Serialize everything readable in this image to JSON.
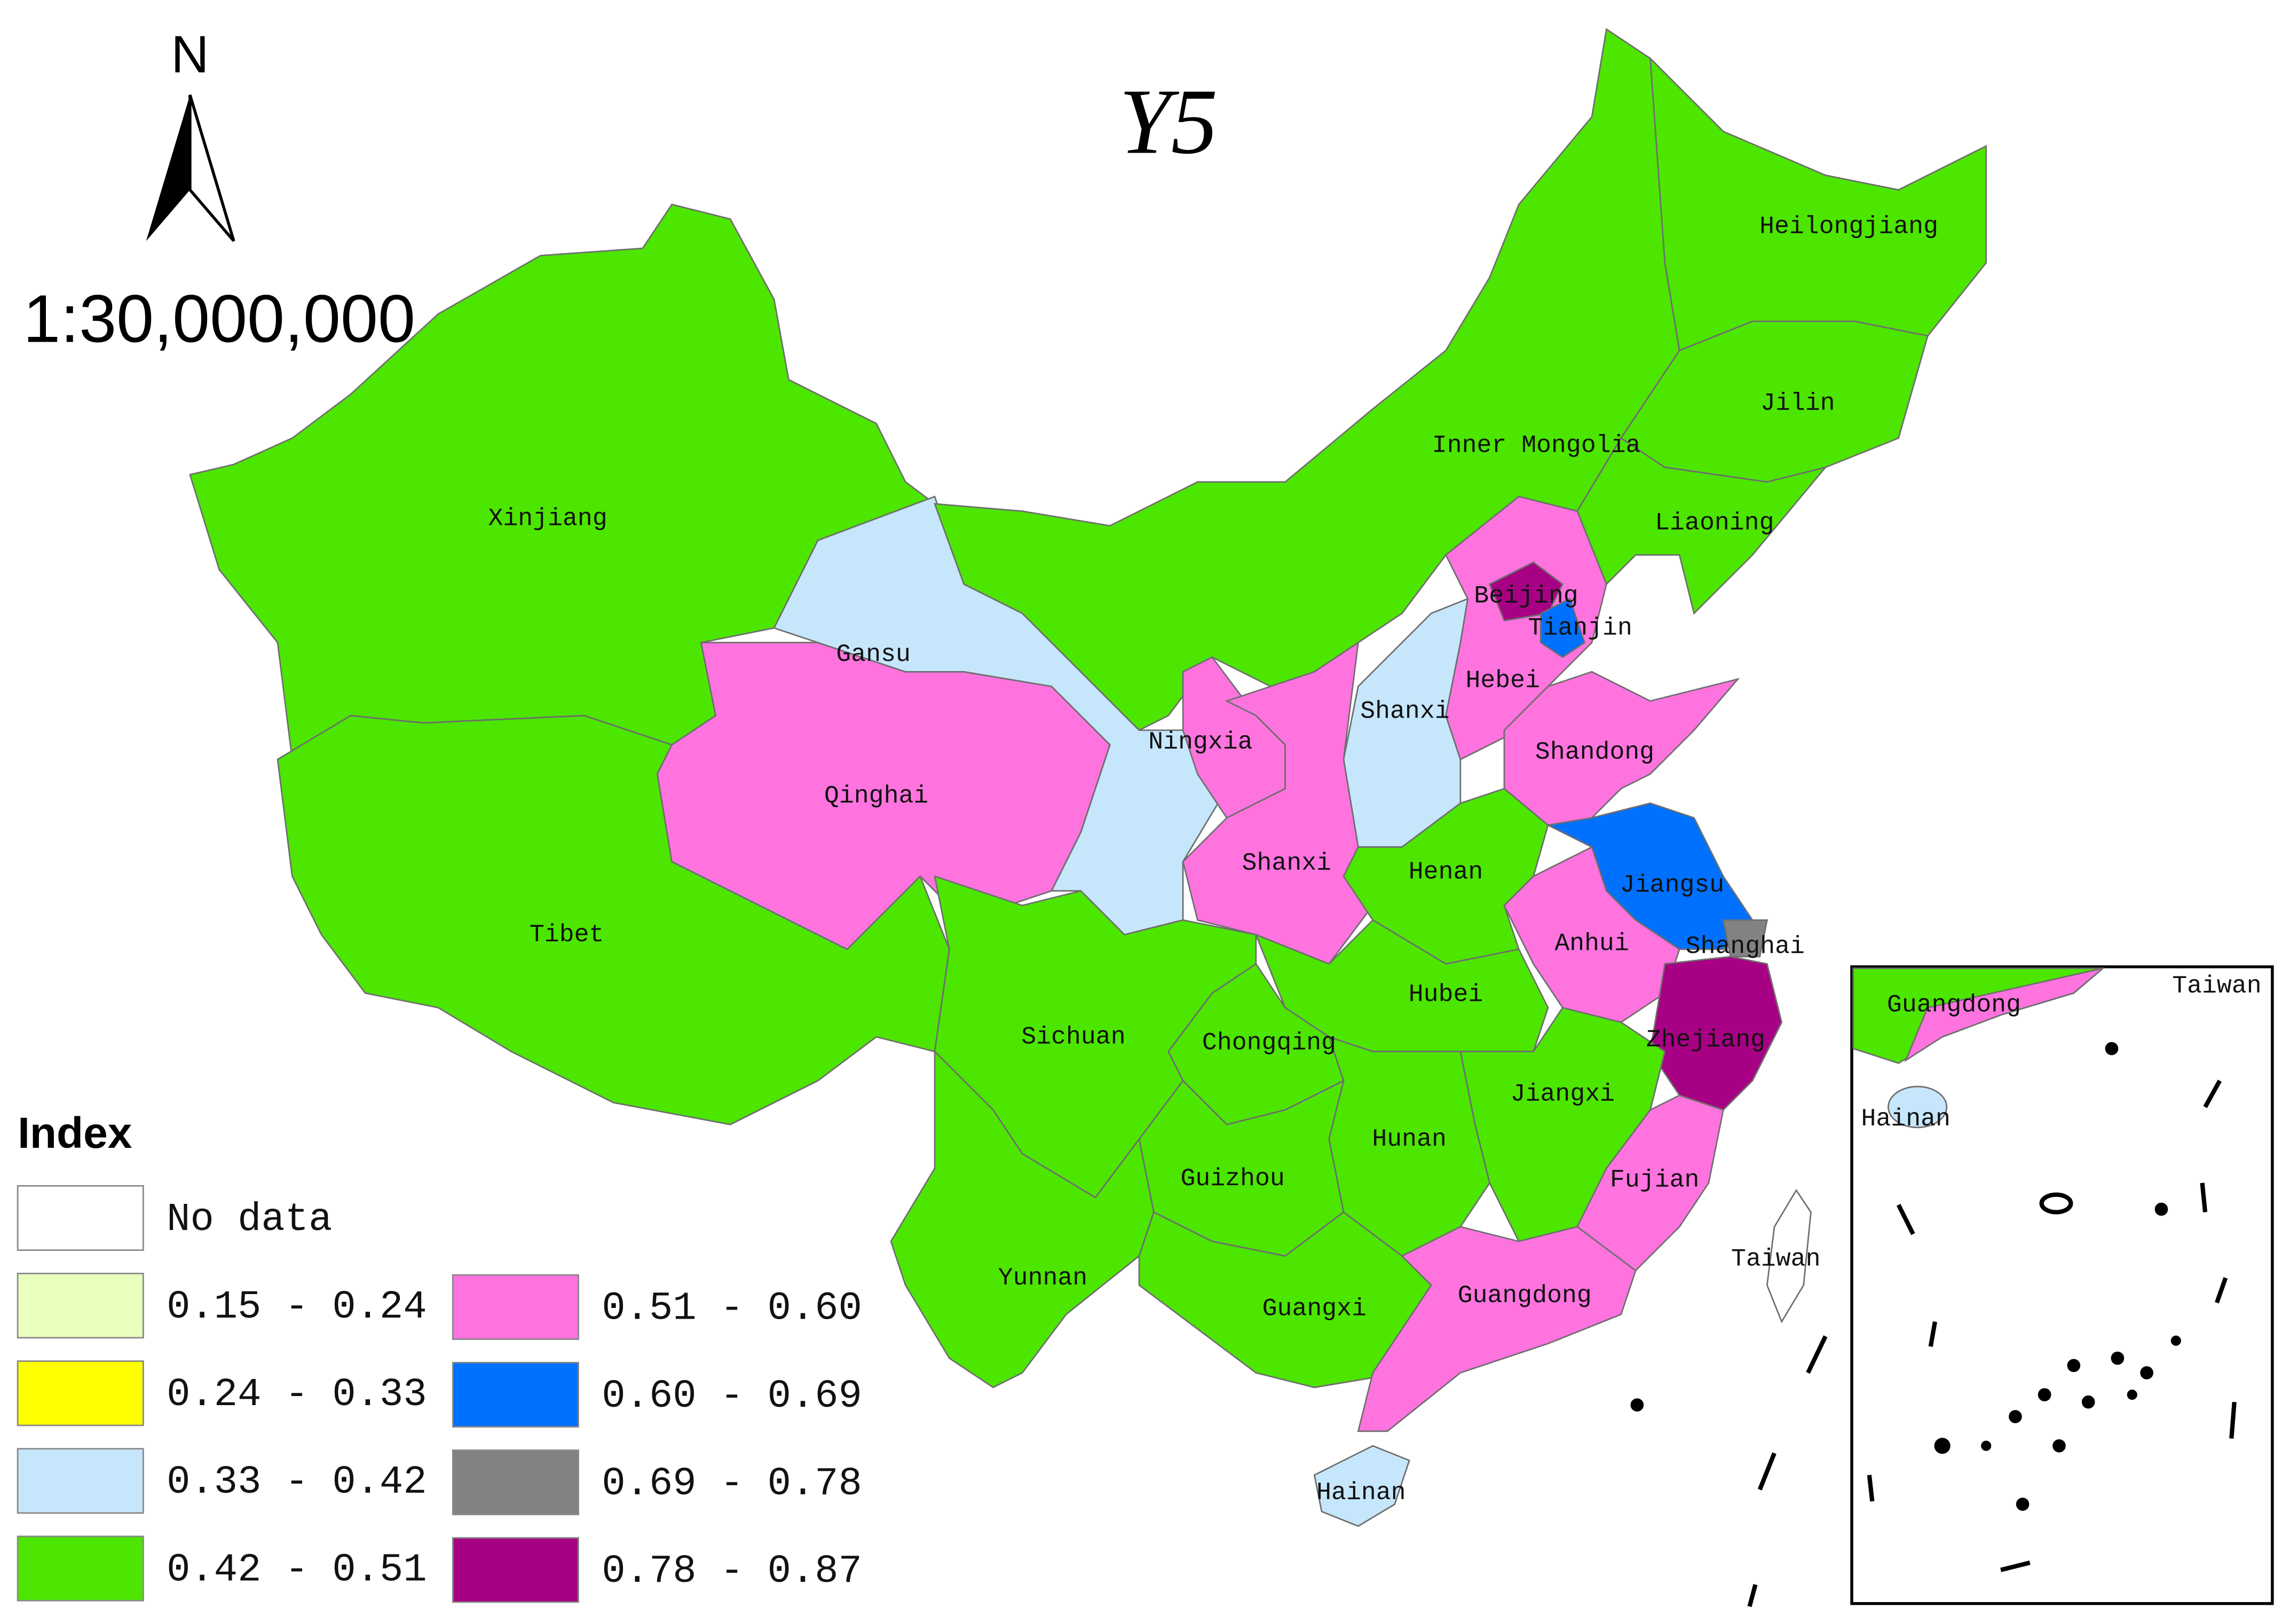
{
  "map": {
    "title": "Y5",
    "north": "N",
    "scale": "1:30,000,000",
    "legend": {
      "title": "Index",
      "items": [
        {
          "label": "No data",
          "color": "#ffffff"
        },
        {
          "label": "0.15 - 0.24",
          "color": "#e9ffbe"
        },
        {
          "label": "0.24 - 0.33",
          "color": "#ffff00"
        },
        {
          "label": "0.33 - 0.42",
          "color": "#c6e6fb"
        },
        {
          "label": "0.42 - 0.51",
          "color": "#4ce600"
        },
        {
          "label": "0.51 - 0.60",
          "color": "#ff73df"
        },
        {
          "label": "0.60 - 0.69",
          "color": "#0070ff"
        },
        {
          "label": "0.69 - 0.78",
          "color": "#828282"
        },
        {
          "label": "0.78 - 0.87",
          "color": "#a80084"
        }
      ]
    },
    "regions": [
      {
        "label": "Xinjiang",
        "color": "#4ce600"
      },
      {
        "label": "Tibet",
        "color": "#4ce600"
      },
      {
        "label": "Qinghai",
        "color": "#ff73df"
      },
      {
        "label": "Gansu",
        "color": "#c6e6fb"
      },
      {
        "label": "Inner Mongolia",
        "color": "#4ce600"
      },
      {
        "label": "Heilongjiang",
        "color": "#4ce600"
      },
      {
        "label": "Jilin",
        "color": "#4ce600"
      },
      {
        "label": "Liaoning",
        "color": "#4ce600"
      },
      {
        "label": "Hebei",
        "color": "#ff73df"
      },
      {
        "label": "Beijing",
        "color": "#a80084"
      },
      {
        "label": "Tianjin",
        "color": "#0070ff"
      },
      {
        "label": "Shanxi",
        "color": "#c6e6fb"
      },
      {
        "label": "Shandong",
        "color": "#ff73df"
      },
      {
        "label": "Ningxia",
        "color": "#ff73df"
      },
      {
        "label": "Shanxi",
        "color": "#ff73df"
      },
      {
        "label": "Henan",
        "color": "#4ce600"
      },
      {
        "label": "Jiangsu",
        "color": "#0070ff"
      },
      {
        "label": "Shanghai",
        "color": "#828282"
      },
      {
        "label": "Anhui",
        "color": "#ff73df"
      },
      {
        "label": "Zhejiang",
        "color": "#a80084"
      },
      {
        "label": "Hubei",
        "color": "#4ce600"
      },
      {
        "label": "Chongqing",
        "color": "#4ce600"
      },
      {
        "label": "Sichuan",
        "color": "#4ce600"
      },
      {
        "label": "Jiangxi",
        "color": "#4ce600"
      },
      {
        "label": "Hunan",
        "color": "#4ce600"
      },
      {
        "label": "Guizhou",
        "color": "#4ce600"
      },
      {
        "label": "Fujian",
        "color": "#ff73df"
      },
      {
        "label": "Yunnan",
        "color": "#4ce600"
      },
      {
        "label": "Guangxi",
        "color": "#4ce600"
      },
      {
        "label": "Guangdong",
        "color": "#ff73df"
      },
      {
        "label": "Hainan",
        "color": "#c6e6fb"
      },
      {
        "label": "Taiwan",
        "color": "#ffffff"
      }
    ],
    "inset": {
      "labels": [
        "Guangdong",
        "Taiwan",
        "Hainan"
      ]
    }
  }
}
